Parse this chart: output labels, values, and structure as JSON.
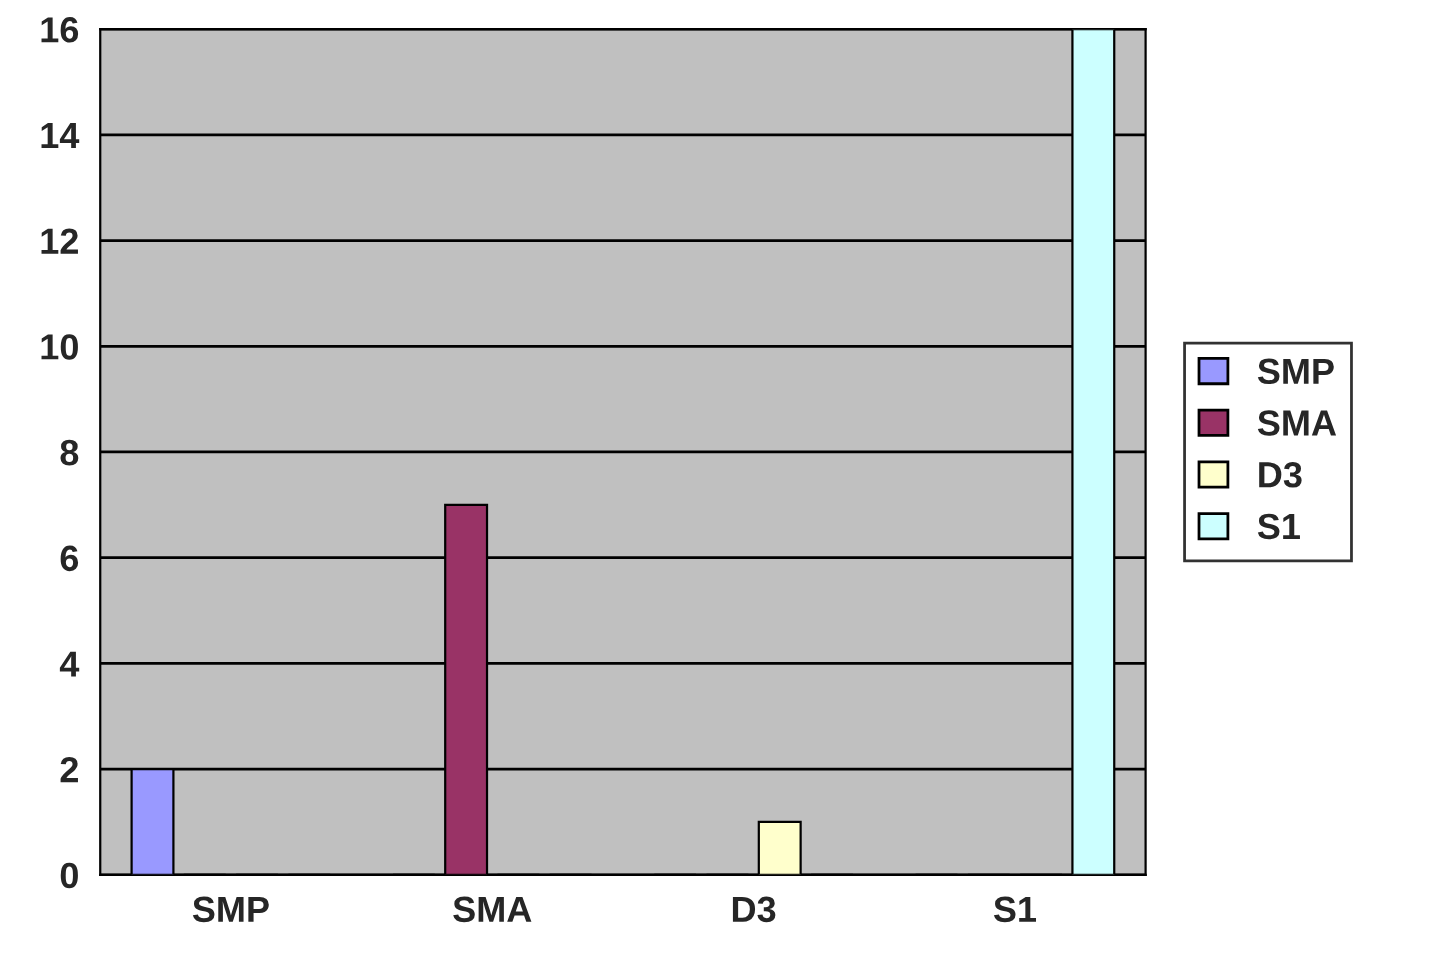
{
  "chart_data": {
    "type": "bar",
    "categories": [
      "SMP",
      "SMA",
      "D3",
      "S1"
    ],
    "series": [
      {
        "name": "SMP",
        "color": "#9999ff",
        "values": [
          2,
          0,
          0,
          0
        ]
      },
      {
        "name": "SMA",
        "color": "#993366",
        "values": [
          0,
          7,
          0,
          0
        ]
      },
      {
        "name": "D3",
        "color": "#ffffcc",
        "values": [
          0,
          0,
          1,
          0
        ]
      },
      {
        "name": "S1",
        "color": "#ccffff",
        "values": [
          0,
          0,
          0,
          16
        ]
      }
    ],
    "ylim": [
      0,
      16
    ],
    "yticks": [
      0,
      2,
      4,
      6,
      8,
      10,
      12,
      14,
      16
    ],
    "grid": "y",
    "legend": "right"
  }
}
